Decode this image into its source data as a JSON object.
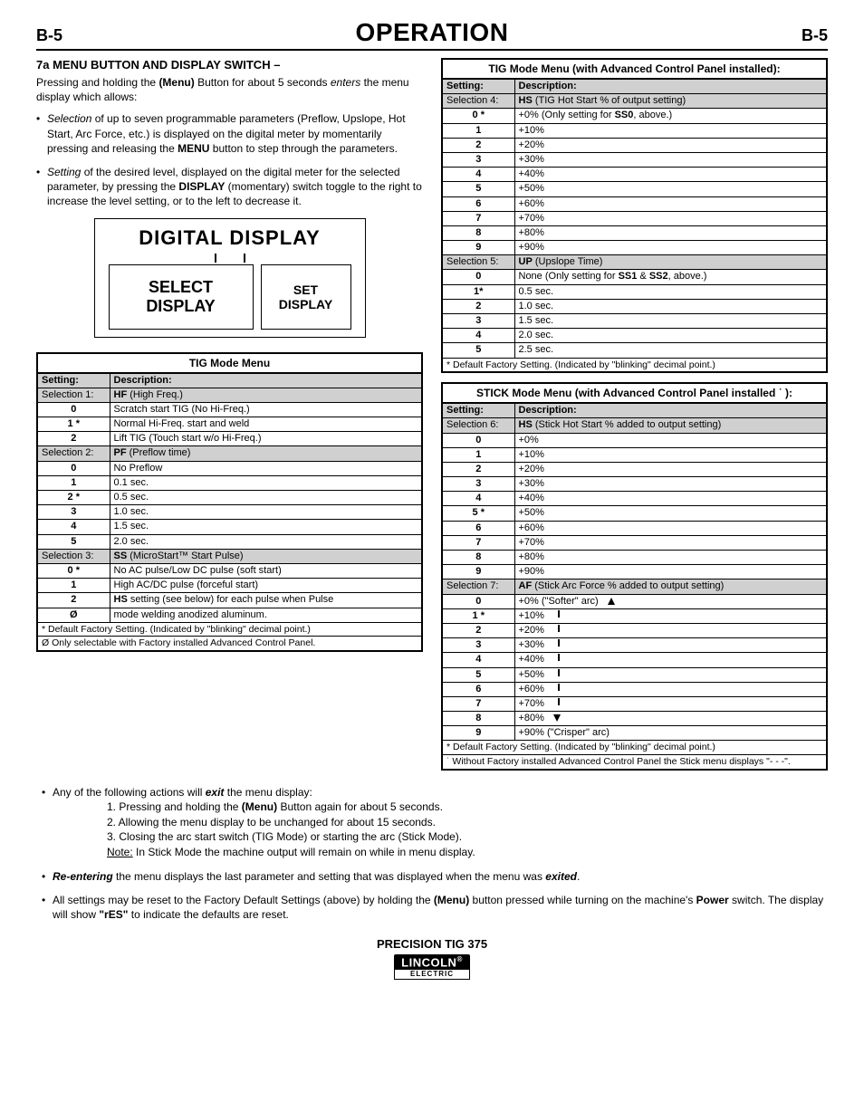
{
  "header": {
    "left": "B-5",
    "title": "OPERATION",
    "right": "B-5"
  },
  "section_title": "7a MENU BUTTON AND DISPLAY SWITCH –",
  "intro": "Pressing and holding the (Menu) Button for about 5 seconds enters the menu display which allows:",
  "bullet1": "Selection of up to seven programmable parameters (Preflow, Upslope, Hot Start, Arc Force, etc.) is displayed on the digital meter by momentarily pressing and releasing the MENU button to step through the parameters.",
  "bullet2": "Setting of the desired level, displayed on the digital meter for the selected parameter, by pressing the DISPLAY (momentary) switch toggle to the right to increase the level setting, or to the left to decrease it.",
  "diagram": {
    "title": "DIGITAL DISPLAY",
    "left1": "SELECT",
    "left2": "DISPLAY",
    "right1": "SET",
    "right2": "DISPLAY"
  },
  "table1": {
    "caption": "TIG Mode Menu",
    "h1": "Setting:",
    "h2": "Description:",
    "rows": [
      {
        "s": "Selection 1:",
        "d": "HF (High Freq.)",
        "sel": true
      },
      {
        "s": "0",
        "d": "Scratch start TIG (No Hi-Freq.)"
      },
      {
        "s": "1 *",
        "d": "Normal Hi-Freq. start and weld"
      },
      {
        "s": "2",
        "d": "Lift TIG (Touch start w/o Hi-Freq.)"
      },
      {
        "s": "Selection 2:",
        "d": "PF (Preflow time)",
        "sel": true
      },
      {
        "s": "0",
        "d": "No Preflow"
      },
      {
        "s": "1",
        "d": "0.1 sec."
      },
      {
        "s": "2 *",
        "d": "0.5 sec."
      },
      {
        "s": "3",
        "d": "1.0 sec."
      },
      {
        "s": "4",
        "d": "1.5 sec."
      },
      {
        "s": "5",
        "d": "2.0 sec."
      },
      {
        "s": "Selection 3:",
        "d": "SS (MicroStart™ Start Pulse)",
        "sel": true
      },
      {
        "s": "0 *",
        "d": "No AC pulse/Low DC pulse (soft start)"
      },
      {
        "s": "1",
        "d": "High AC/DC pulse (forceful start)"
      },
      {
        "s": "2",
        "d": "HS setting (see below) for each pulse when Pulse"
      },
      {
        "s": "Ø",
        "d": "mode welding anodized aluminum."
      }
    ],
    "foot1": "* Default Factory Setting. (Indicated by \"blinking\" decimal point.)",
    "foot2": "Ø Only selectable with Factory installed Advanced Control Panel."
  },
  "table2": {
    "caption": "TIG Mode Menu (with Advanced Control Panel installed):",
    "h1": "Setting:",
    "h2": "Description:",
    "rows": [
      {
        "s": "Selection 4:",
        "d": "HS (TIG Hot Start % of output setting)",
        "sel": true
      },
      {
        "s": "0 *",
        "d": "+0%        (Only setting for SS0, above.)"
      },
      {
        "s": "1",
        "d": "+10%"
      },
      {
        "s": "2",
        "d": "+20%"
      },
      {
        "s": "3",
        "d": "+30%"
      },
      {
        "s": "4",
        "d": "+40%"
      },
      {
        "s": "5",
        "d": "+50%"
      },
      {
        "s": "6",
        "d": "+60%"
      },
      {
        "s": "7",
        "d": "+70%"
      },
      {
        "s": "8",
        "d": "+80%"
      },
      {
        "s": "9",
        "d": "+90%"
      },
      {
        "s": "Selection 5:",
        "d": "UP (Upslope Time)",
        "sel": true
      },
      {
        "s": "0",
        "d": "None     (Only setting for SS1 & SS2, above.)"
      },
      {
        "s": "1*",
        "d": "0.5 sec."
      },
      {
        "s": "2",
        "d": "1.0 sec."
      },
      {
        "s": "3",
        "d": "1.5 sec."
      },
      {
        "s": "4",
        "d": "2.0 sec."
      },
      {
        "s": "5",
        "d": "2.5 sec."
      }
    ],
    "foot1": "* Default Factory Setting. (Indicated by \"blinking\" decimal point.)"
  },
  "table3": {
    "caption": "STICK Mode Menu (with Advanced Control Panel installed ˙ ):",
    "h1": "Setting:",
    "h2": "Description:",
    "rows": [
      {
        "s": "Selection 6:",
        "d": "HS (Stick Hot Start % added to output setting)",
        "sel": true
      },
      {
        "s": "0",
        "d": "+0%"
      },
      {
        "s": "1",
        "d": "+10%"
      },
      {
        "s": "2",
        "d": "+20%"
      },
      {
        "s": "3",
        "d": "+30%"
      },
      {
        "s": "4",
        "d": "+40%"
      },
      {
        "s": "5 *",
        "d": "+50%"
      },
      {
        "s": "6",
        "d": "+60%"
      },
      {
        "s": "7",
        "d": "+70%"
      },
      {
        "s": "8",
        "d": "+80%"
      },
      {
        "s": "9",
        "d": "+90%"
      },
      {
        "s": "Selection 7:",
        "d": "AF (Stick Arc Force % added to output setting)",
        "sel": true
      },
      {
        "s": "0",
        "d": "+0%            (\"Softer\" arc)",
        "arrow": "up"
      },
      {
        "s": "1 *",
        "d": "+10%",
        "arrow": "line"
      },
      {
        "s": "2",
        "d": "+20%",
        "arrow": "line"
      },
      {
        "s": "3",
        "d": "+30%",
        "arrow": "line"
      },
      {
        "s": "4",
        "d": "+40%",
        "arrow": "line"
      },
      {
        "s": "5",
        "d": "+50%",
        "arrow": "line"
      },
      {
        "s": "6",
        "d": "+60%",
        "arrow": "line"
      },
      {
        "s": "7",
        "d": "+70%",
        "arrow": "line"
      },
      {
        "s": "8",
        "d": "+80%",
        "arrow": "down"
      },
      {
        "s": "9",
        "d": "+90%        (\"Crisper\" arc)"
      }
    ],
    "foot1": "* Default Factory Setting. (Indicated by \"blinking\" decimal point.)",
    "foot2": "˙ Without Factory installed Advanced Control Panel the Stick menu displays \"- - -\"."
  },
  "bottom": {
    "b1": "Any of the following actions will exit the menu display:",
    "sub1": "1. Pressing and holding the (Menu) Button again for about 5 seconds.",
    "sub2": "2. Allowing the menu display to be unchanged for about 15 seconds.",
    "sub3": "3. Closing the arc start switch (TIG Mode) or starting the arc (Stick Mode).",
    "sub4": "Note: In Stick Mode the machine output will remain on while in menu display.",
    "b2": "Re-entering the menu displays the last parameter and setting that was displayed when the menu was exited.",
    "b3": "All settings may be reset to the Factory Default Settings (above) by holding the (Menu) button pressed while turning on the machine's Power switch. The display will show \"rES\" to indicate the defaults are reset."
  },
  "footer": {
    "model": "PRECISION TIG 375",
    "brand": "LINCOLN",
    "sub": "ELECTRIC"
  }
}
